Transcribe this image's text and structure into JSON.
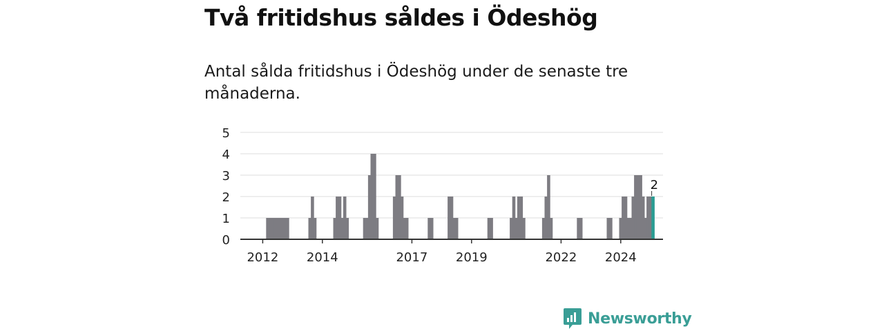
{
  "title": "Två fritidshus såldes i Ödeshög",
  "subtitle": "Antal sålda fritidshus i Ödeshög under de senaste tre månaderna.",
  "brand": {
    "name": "Newsworthy",
    "icon": "newsworthy-logo-icon"
  },
  "colors": {
    "bar": "#7d7c82",
    "highlight": "#2a9d93",
    "grid": "#dddddd",
    "axis": "#333333",
    "brand": "#3a9e96"
  },
  "chart_data": {
    "type": "bar",
    "title": "",
    "xlabel": "",
    "ylabel": "",
    "ylim": [
      0,
      5
    ],
    "yticks": [
      0,
      1,
      2,
      3,
      4,
      5
    ],
    "xlim": [
      "2011-04",
      "2025-06"
    ],
    "xticks": [
      {
        "x": "2012-01",
        "label": "2012"
      },
      {
        "x": "2014-01",
        "label": "2014"
      },
      {
        "x": "2017-01",
        "label": "2017"
      },
      {
        "x": "2019-01",
        "label": "2019"
      },
      {
        "x": "2022-01",
        "label": "2022"
      },
      {
        "x": "2024-01",
        "label": "2024"
      }
    ],
    "grid": true,
    "highlight_label": "2",
    "points": [
      {
        "x": "2012-03",
        "y": 1
      },
      {
        "x": "2012-04",
        "y": 1
      },
      {
        "x": "2012-05",
        "y": 1
      },
      {
        "x": "2012-06",
        "y": 1
      },
      {
        "x": "2012-07",
        "y": 1
      },
      {
        "x": "2012-08",
        "y": 1
      },
      {
        "x": "2012-09",
        "y": 1
      },
      {
        "x": "2012-10",
        "y": 1
      },
      {
        "x": "2012-11",
        "y": 1
      },
      {
        "x": "2013-08",
        "y": 1
      },
      {
        "x": "2013-09",
        "y": 2
      },
      {
        "x": "2013-10",
        "y": 1
      },
      {
        "x": "2014-06",
        "y": 1
      },
      {
        "x": "2014-07",
        "y": 2
      },
      {
        "x": "2014-08",
        "y": 2
      },
      {
        "x": "2014-09",
        "y": 1
      },
      {
        "x": "2014-10",
        "y": 2
      },
      {
        "x": "2014-11",
        "y": 1
      },
      {
        "x": "2015-06",
        "y": 1
      },
      {
        "x": "2015-07",
        "y": 1
      },
      {
        "x": "2015-08",
        "y": 3
      },
      {
        "x": "2015-09",
        "y": 4
      },
      {
        "x": "2015-10",
        "y": 4
      },
      {
        "x": "2015-11",
        "y": 1
      },
      {
        "x": "2016-06",
        "y": 2
      },
      {
        "x": "2016-07",
        "y": 3
      },
      {
        "x": "2016-08",
        "y": 3
      },
      {
        "x": "2016-09",
        "y": 2
      },
      {
        "x": "2016-10",
        "y": 1
      },
      {
        "x": "2016-11",
        "y": 1
      },
      {
        "x": "2017-08",
        "y": 1
      },
      {
        "x": "2017-09",
        "y": 1
      },
      {
        "x": "2018-04",
        "y": 2
      },
      {
        "x": "2018-05",
        "y": 2
      },
      {
        "x": "2018-06",
        "y": 1
      },
      {
        "x": "2018-07",
        "y": 1
      },
      {
        "x": "2019-08",
        "y": 1
      },
      {
        "x": "2019-09",
        "y": 1
      },
      {
        "x": "2020-05",
        "y": 1
      },
      {
        "x": "2020-06",
        "y": 2
      },
      {
        "x": "2020-07",
        "y": 1
      },
      {
        "x": "2020-08",
        "y": 2
      },
      {
        "x": "2020-09",
        "y": 2
      },
      {
        "x": "2020-10",
        "y": 1
      },
      {
        "x": "2021-06",
        "y": 1
      },
      {
        "x": "2021-07",
        "y": 2
      },
      {
        "x": "2021-08",
        "y": 3
      },
      {
        "x": "2021-09",
        "y": 1
      },
      {
        "x": "2022-08",
        "y": 1
      },
      {
        "x": "2022-09",
        "y": 1
      },
      {
        "x": "2023-08",
        "y": 1
      },
      {
        "x": "2023-09",
        "y": 1
      },
      {
        "x": "2024-01",
        "y": 1
      },
      {
        "x": "2024-02",
        "y": 2
      },
      {
        "x": "2024-03",
        "y": 2
      },
      {
        "x": "2024-04",
        "y": 1
      },
      {
        "x": "2024-05",
        "y": 1
      },
      {
        "x": "2024-06",
        "y": 2
      },
      {
        "x": "2024-07",
        "y": 3
      },
      {
        "x": "2024-08",
        "y": 3
      },
      {
        "x": "2024-09",
        "y": 3
      },
      {
        "x": "2024-10",
        "y": 2
      },
      {
        "x": "2024-11",
        "y": 1
      },
      {
        "x": "2024-12",
        "y": 2
      },
      {
        "x": "2025-01",
        "y": 2
      },
      {
        "x": "2025-02",
        "y": 2,
        "highlight": true
      }
    ]
  }
}
